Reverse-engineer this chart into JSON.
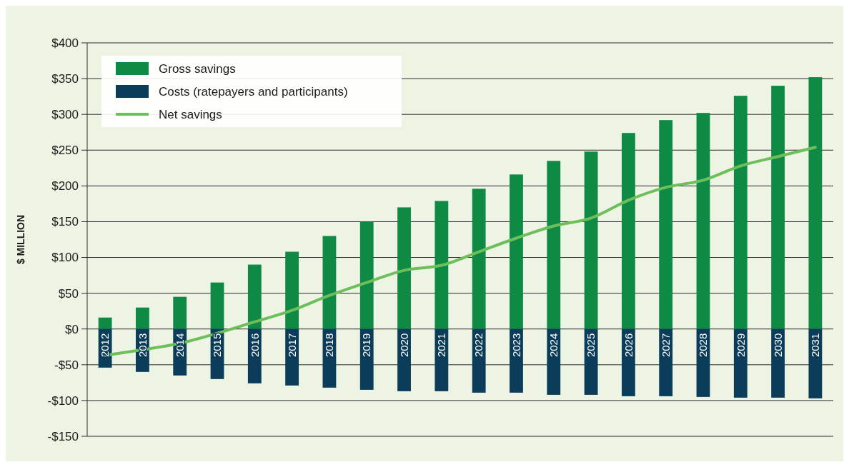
{
  "chart_data": {
    "type": "bar",
    "ylabel": "$ MILLION",
    "categories": [
      "2012",
      "2013",
      "2014",
      "2015",
      "2016",
      "2017",
      "2018",
      "2019",
      "2020",
      "2021",
      "2022",
      "2023",
      "2024",
      "2025",
      "2026",
      "2027",
      "2028",
      "2029",
      "2030",
      "2031"
    ],
    "series": [
      {
        "name": "Gross savings",
        "color": "#0e8a44",
        "values": [
          16,
          30,
          45,
          65,
          90,
          108,
          130,
          150,
          170,
          179,
          196,
          216,
          235,
          248,
          274,
          292,
          302,
          326,
          340,
          352
        ]
      },
      {
        "name": "Costs (ratepayers and participants)",
        "color": "#0b3d5a",
        "values": [
          -54,
          -60,
          -65,
          -70,
          -76,
          -79,
          -82,
          -85,
          -87,
          -87,
          -89,
          -89,
          -92,
          -92,
          -94,
          -94,
          -95,
          -96,
          -96,
          -97
        ]
      },
      {
        "name": "Net savings",
        "type": "line",
        "color": "#6cbf5a",
        "values": [
          -37,
          -29,
          -20,
          -6,
          10,
          26,
          47,
          65,
          82,
          89,
          108,
          127,
          144,
          155,
          180,
          198,
          208,
          228,
          241,
          254
        ]
      }
    ],
    "ylim": [
      -150,
      400
    ],
    "yticks": [
      {
        "value": -150,
        "label": "-$150"
      },
      {
        "value": -100,
        "label": "-$100"
      },
      {
        "value": -50,
        "label": "-$50"
      },
      {
        "value": 0,
        "label": "$0"
      },
      {
        "value": 50,
        "label": "$50"
      },
      {
        "value": 100,
        "label": "$100"
      },
      {
        "value": 150,
        "label": "$150"
      },
      {
        "value": 200,
        "label": "$200"
      },
      {
        "value": 250,
        "label": "$250"
      },
      {
        "value": 300,
        "label": "$300"
      },
      {
        "value": 350,
        "label": "$350"
      },
      {
        "value": 400,
        "label": "$400"
      }
    ],
    "stacked": true,
    "grid": "y",
    "legend": "top left",
    "marker": "none",
    "line_style": "solid"
  }
}
